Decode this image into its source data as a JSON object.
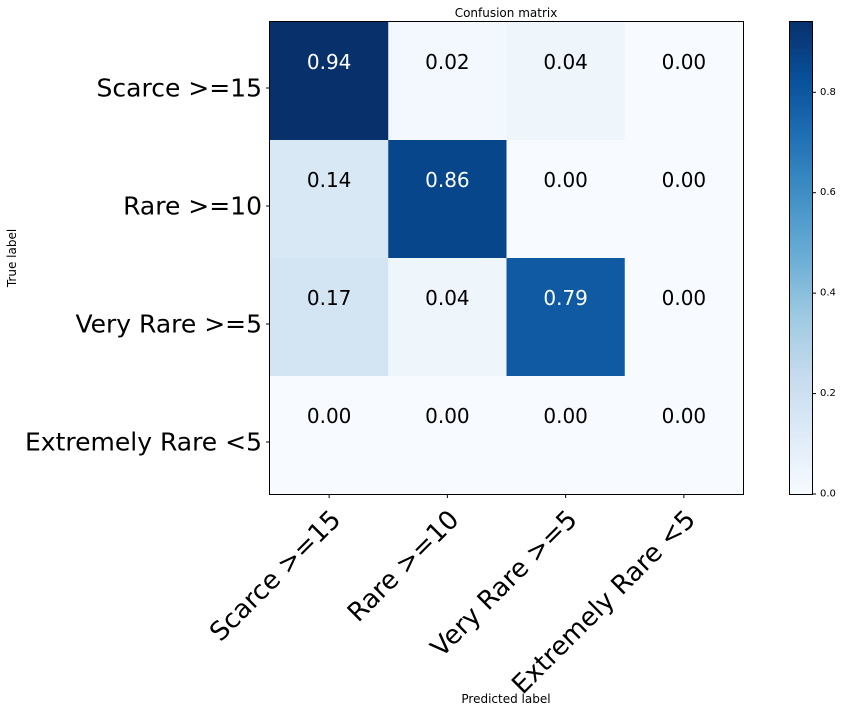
{
  "chart_data": {
    "type": "heatmap",
    "title": "Confusion matrix",
    "xlabel": "Predicted label",
    "ylabel": "True label",
    "x_categories": [
      "Scarce >=15",
      "Rare >=10",
      "Very Rare >=5",
      "Extremely Rare <5"
    ],
    "y_categories": [
      "Scarce >=15",
      "Rare >=10",
      "Very Rare >=5",
      "Extremely Rare <5"
    ],
    "values": [
      [
        0.94,
        0.02,
        0.04,
        0.0
      ],
      [
        0.14,
        0.86,
        0.0,
        0.0
      ],
      [
        0.17,
        0.04,
        0.79,
        0.0
      ],
      [
        0.0,
        0.0,
        0.0,
        0.0
      ]
    ],
    "value_labels": [
      [
        "0.94",
        "0.02",
        "0.04",
        "0.00"
      ],
      [
        "0.14",
        "0.86",
        "0.00",
        "0.00"
      ],
      [
        "0.17",
        "0.04",
        "0.79",
        "0.00"
      ],
      [
        "0.00",
        "0.00",
        "0.00",
        "0.00"
      ]
    ],
    "colormap": "Blues",
    "colorbar": {
      "range": [
        0,
        0.94
      ],
      "ticks": [
        0.0,
        0.2,
        0.4,
        0.6,
        0.8
      ],
      "tick_labels": [
        "0.0",
        "0.2",
        "0.4",
        "0.6",
        "0.8"
      ]
    },
    "grid": false
  }
}
